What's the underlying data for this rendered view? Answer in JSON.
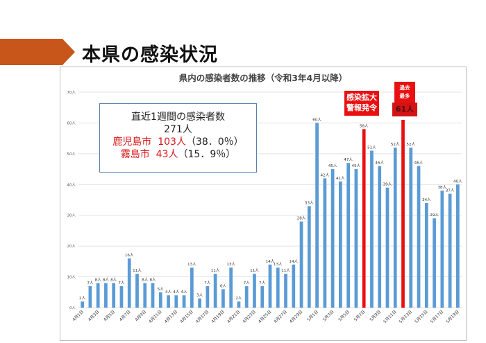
{
  "slide": {
    "title": "本県の感染状況",
    "accent_color": "#c8561a"
  },
  "chart_data": {
    "type": "bar",
    "title": "県内の感染者数の推移（令和3年4月以降）",
    "ylim": [
      0,
      70
    ],
    "y_ticks": [
      "0人",
      "10人",
      "20人",
      "30人",
      "40人",
      "50人",
      "60人",
      "70人"
    ],
    "grid": true,
    "bar_color": "#5b9bd5",
    "highlight_color": "#e81010",
    "categories": [
      "4月1日",
      "4月2日",
      "4月3日",
      "4月4日",
      "4月5日",
      "4月6日",
      "4月7日",
      "4月8日",
      "4月9日",
      "4月10日",
      "4月11日",
      "4月12日",
      "4月13日",
      "4月14日",
      "4月15日",
      "4月16日",
      "4月17日",
      "4月18日",
      "4月19日",
      "4月20日",
      "4月21日",
      "4月22日",
      "4月23日",
      "4月24日",
      "4月25日",
      "4月26日",
      "4月27日",
      "4月28日",
      "4月29日",
      "4月30日",
      "5月1日",
      "5月2日",
      "5月3日",
      "5月4日",
      "5月5日",
      "5月6日",
      "5月7日",
      "5月8日",
      "5月9日",
      "5月10日",
      "5月11日",
      "5月12日",
      "5月13日",
      "5月14日",
      "5月15日",
      "5月16日",
      "5月17日",
      "5月18日",
      "5月19日"
    ],
    "x_tick_labels": [
      "4月1日",
      "",
      "4月3日",
      "",
      "4月5日",
      "",
      "4月7日",
      "",
      "4月9日",
      "",
      "4月11日",
      "",
      "4月13日",
      "",
      "4月15日",
      "",
      "4月17日",
      "",
      "4月19日",
      "",
      "4月21日",
      "",
      "4月23日",
      "",
      "4月25日",
      "",
      "4月27日",
      "",
      "4月29日",
      "",
      "5月1日",
      "",
      "5月3日",
      "",
      "5月5日",
      "",
      "5月7日",
      "",
      "5月9日",
      "",
      "5月11日",
      "",
      "5月13日",
      "",
      "5月15日",
      "",
      "5月17日",
      "",
      "5月19日"
    ],
    "values": [
      2,
      7,
      8,
      8,
      8,
      7,
      16,
      11,
      8,
      8,
      5,
      4,
      4,
      4,
      13,
      3,
      7,
      11,
      6,
      13,
      2,
      7,
      11,
      7,
      14,
      13,
      11,
      14,
      28,
      33,
      60,
      42,
      45,
      41,
      47,
      45,
      58,
      51,
      46,
      39,
      52,
      61,
      52,
      46,
      34,
      29,
      38,
      37,
      40
    ],
    "data_labels": [
      "2人",
      "7人",
      "8人",
      "8人",
      "8人",
      "7人",
      "16人",
      "11人",
      "8人",
      "8人",
      "5人",
      "4人",
      "4人",
      "4人",
      "13人",
      "3人",
      "7人",
      "11人",
      "6人",
      "13人",
      "2人",
      "7人",
      "11人",
      "7人",
      "14人",
      "13人",
      "11人",
      "14人",
      "28人",
      "33人",
      "60人",
      "42人",
      "45人",
      "41人",
      "47人",
      "45人",
      "58人",
      "51人",
      "46人",
      "39人",
      "52人",
      "",
      "52人",
      "46人",
      "34人",
      "29人",
      "38人",
      "37人",
      "40人"
    ],
    "highlight_indices": [
      36,
      41
    ],
    "annotations": [
      {
        "text": "感染拡大\n警報発令",
        "target": "5月7日"
      },
      {
        "text": "過去\n最多",
        "target": "5月12日"
      }
    ]
  },
  "summary_box": {
    "heading": "直近1週間の感染者数",
    "total": "271人",
    "line1_place": "鹿児島市",
    "line1_count": "103人",
    "line1_pct": "（38．0％）",
    "line2_place": "霧島市",
    "line2_count": "43人",
    "line2_pct": "（15．9％）"
  },
  "callouts": {
    "alert_line1": "感染拡大",
    "alert_line2": "警報発令",
    "record_line1": "過去",
    "record_line2": "最多",
    "record_value": "61人"
  }
}
